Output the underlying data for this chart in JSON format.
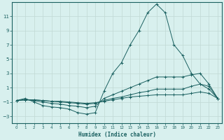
{
  "xlabel": "Humidex (Indice chaleur)",
  "ylabel": "",
  "background_color": "#d8f0ee",
  "grid_color": "#c0d8d4",
  "line_color": "#1a6060",
  "xlim": [
    -0.5,
    23.5
  ],
  "ylim": [
    -4,
    13
  ],
  "yticks": [
    -3,
    -1,
    1,
    3,
    5,
    7,
    9,
    11
  ],
  "xticks": [
    0,
    1,
    2,
    3,
    4,
    5,
    6,
    7,
    8,
    9,
    10,
    11,
    12,
    13,
    14,
    15,
    16,
    17,
    18,
    19,
    20,
    21,
    22,
    23
  ],
  "curves": [
    {
      "x": [
        0,
        1,
        2,
        3,
        4,
        5,
        6,
        7,
        8,
        9,
        10,
        11,
        12,
        13,
        14,
        15,
        16,
        17,
        18,
        19,
        20,
        21,
        22,
        23
      ],
      "y": [
        -0.8,
        -0.5,
        -1.0,
        -1.5,
        -1.7,
        -1.8,
        -2.0,
        -2.5,
        -2.7,
        -2.5,
        0.5,
        3.0,
        4.5,
        7.0,
        9.0,
        11.5,
        12.7,
        11.5,
        7.0,
        5.5,
        3.0,
        1.5,
        1.2,
        -0.5
      ]
    },
    {
      "x": [
        0,
        1,
        2,
        3,
        4,
        5,
        6,
        7,
        8,
        9,
        10,
        11,
        12,
        13,
        14,
        15,
        16,
        17,
        18,
        19,
        20,
        21,
        22,
        23
      ],
      "y": [
        -0.8,
        -0.7,
        -0.8,
        -1.0,
        -1.2,
        -1.3,
        -1.5,
        -1.6,
        -1.8,
        -1.6,
        -0.5,
        0.0,
        0.5,
        1.0,
        1.5,
        2.0,
        2.5,
        2.5,
        2.5,
        2.5,
        2.8,
        3.0,
        1.5,
        -0.5
      ]
    },
    {
      "x": [
        0,
        1,
        2,
        3,
        4,
        5,
        6,
        7,
        8,
        9,
        10,
        11,
        12,
        13,
        14,
        15,
        16,
        17,
        18,
        19,
        20,
        21,
        22,
        23
      ],
      "y": [
        -0.8,
        -0.7,
        -0.7,
        -0.8,
        -0.9,
        -1.0,
        -1.1,
        -1.2,
        -1.3,
        -1.2,
        -0.8,
        -0.5,
        -0.3,
        0.0,
        0.3,
        0.5,
        0.8,
        0.8,
        0.8,
        0.8,
        1.2,
        1.5,
        0.8,
        -0.5
      ]
    },
    {
      "x": [
        0,
        1,
        2,
        3,
        4,
        5,
        6,
        7,
        8,
        9,
        10,
        11,
        12,
        13,
        14,
        15,
        16,
        17,
        18,
        19,
        20,
        21,
        22,
        23
      ],
      "y": [
        -0.8,
        -0.7,
        -0.7,
        -0.8,
        -0.9,
        -0.9,
        -1.0,
        -1.1,
        -1.2,
        -1.1,
        -0.9,
        -0.7,
        -0.5,
        -0.3,
        -0.2,
        -0.1,
        0.0,
        0.0,
        0.0,
        0.0,
        0.2,
        0.4,
        0.2,
        -0.5
      ]
    }
  ]
}
